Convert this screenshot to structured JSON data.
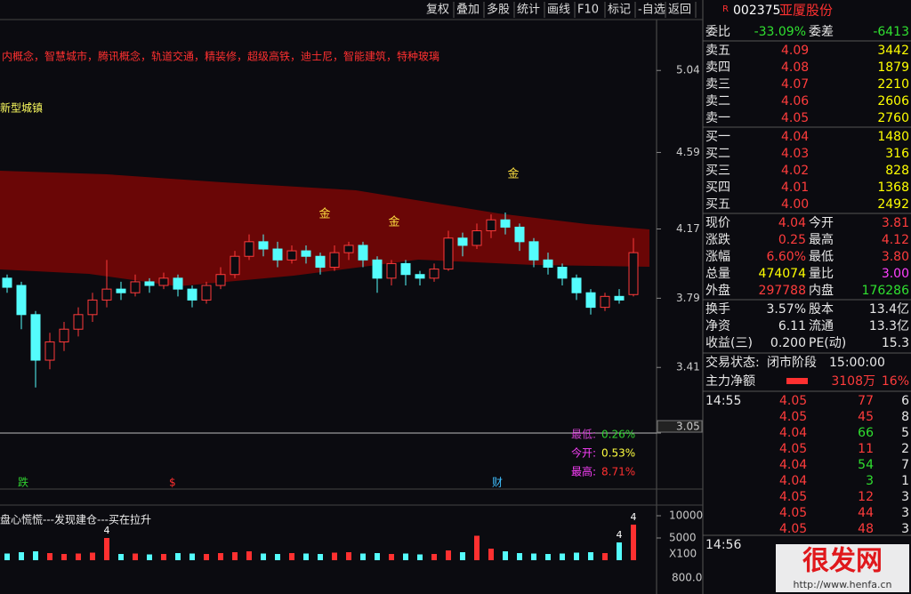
{
  "toolbar": [
    "复权",
    "叠加",
    "多股",
    "统计",
    "画线",
    "F10",
    "标记",
    "-自选",
    "返回"
  ],
  "concepts": "内概念，智慧城市，腾讯概念，轨道交通，精装修，超级高铁，迪士尼，智能建筑，特种玻璃",
  "concept_tag": "新型城镇",
  "price": {
    "ylim": [
      3.05,
      5.29
    ],
    "yticks": [
      5.04,
      4.59,
      4.17,
      3.79,
      3.41,
      3.05
    ],
    "candles": [
      {
        "open": 3.9,
        "close": 3.85,
        "low": 3.82,
        "high": 3.92
      },
      {
        "open": 3.86,
        "close": 3.7,
        "low": 3.62,
        "high": 3.88
      },
      {
        "open": 3.7,
        "close": 3.45,
        "low": 3.3,
        "high": 3.72
      },
      {
        "open": 3.45,
        "close": 3.55,
        "low": 3.4,
        "high": 3.6
      },
      {
        "open": 3.55,
        "close": 3.62,
        "low": 3.5,
        "high": 3.66
      },
      {
        "open": 3.62,
        "close": 3.7,
        "low": 3.58,
        "high": 3.74
      },
      {
        "open": 3.7,
        "close": 3.78,
        "low": 3.66,
        "high": 3.82
      },
      {
        "open": 3.78,
        "close": 3.84,
        "low": 3.74,
        "high": 4.0
      },
      {
        "open": 3.84,
        "close": 3.82,
        "low": 3.78,
        "high": 3.88
      },
      {
        "open": 3.82,
        "close": 3.88,
        "low": 3.8,
        "high": 3.92
      },
      {
        "open": 3.88,
        "close": 3.86,
        "low": 3.82,
        "high": 3.9
      },
      {
        "open": 3.86,
        "close": 3.9,
        "low": 3.84,
        "high": 3.93
      },
      {
        "open": 3.9,
        "close": 3.84,
        "low": 3.8,
        "high": 3.92
      },
      {
        "open": 3.84,
        "close": 3.78,
        "low": 3.74,
        "high": 3.86
      },
      {
        "open": 3.78,
        "close": 3.86,
        "low": 3.76,
        "high": 3.88
      },
      {
        "open": 3.86,
        "close": 3.92,
        "low": 3.84,
        "high": 3.96
      },
      {
        "open": 3.92,
        "close": 4.02,
        "low": 3.9,
        "high": 4.05
      },
      {
        "open": 4.02,
        "close": 4.1,
        "low": 4.0,
        "high": 4.14
      },
      {
        "open": 4.1,
        "close": 4.06,
        "low": 4.02,
        "high": 4.14
      },
      {
        "open": 4.06,
        "close": 4.0,
        "low": 3.96,
        "high": 4.1
      },
      {
        "open": 4.0,
        "close": 4.05,
        "low": 3.98,
        "high": 4.08
      },
      {
        "open": 4.05,
        "close": 4.02,
        "low": 3.98,
        "high": 4.08
      },
      {
        "open": 4.02,
        "close": 3.96,
        "low": 3.92,
        "high": 4.04
      },
      {
        "open": 3.96,
        "close": 4.04,
        "low": 3.94,
        "high": 4.08
      },
      {
        "open": 4.04,
        "close": 4.08,
        "low": 4.0,
        "high": 4.1
      },
      {
        "open": 4.08,
        "close": 4.0,
        "low": 3.96,
        "high": 4.1
      },
      {
        "open": 4.0,
        "close": 3.9,
        "low": 3.82,
        "high": 4.02
      },
      {
        "open": 3.9,
        "close": 3.98,
        "low": 3.86,
        "high": 4.0
      },
      {
        "open": 3.98,
        "close": 3.92,
        "low": 3.86,
        "high": 4.0
      },
      {
        "open": 3.92,
        "close": 3.9,
        "low": 3.86,
        "high": 3.94
      },
      {
        "open": 3.9,
        "close": 3.95,
        "low": 3.88,
        "high": 3.98
      },
      {
        "open": 3.95,
        "close": 4.12,
        "low": 3.94,
        "high": 4.16
      },
      {
        "open": 4.12,
        "close": 4.08,
        "low": 4.02,
        "high": 4.15
      },
      {
        "open": 4.08,
        "close": 4.16,
        "low": 4.06,
        "high": 4.2
      },
      {
        "open": 4.16,
        "close": 4.22,
        "low": 4.12,
        "high": 4.25
      },
      {
        "open": 4.22,
        "close": 4.18,
        "low": 4.14,
        "high": 4.26
      },
      {
        "open": 4.18,
        "close": 4.1,
        "low": 4.05,
        "high": 4.2
      },
      {
        "open": 4.1,
        "close": 4.0,
        "low": 3.96,
        "high": 4.12
      },
      {
        "open": 4.0,
        "close": 3.96,
        "low": 3.92,
        "high": 4.04
      },
      {
        "open": 3.96,
        "close": 3.9,
        "low": 3.86,
        "high": 3.98
      },
      {
        "open": 3.9,
        "close": 3.82,
        "low": 3.78,
        "high": 3.92
      },
      {
        "open": 3.82,
        "close": 3.74,
        "low": 3.7,
        "high": 3.84
      },
      {
        "open": 3.74,
        "close": 3.8,
        "low": 3.72,
        "high": 3.82
      },
      {
        "open": 3.8,
        "close": 3.78,
        "low": 3.76,
        "high": 3.84
      },
      {
        "open": 3.81,
        "close": 4.04,
        "low": 3.8,
        "high": 4.12
      }
    ]
  },
  "markers": [
    "金",
    "金",
    "金"
  ],
  "stats_box": [
    {
      "label": "最低:",
      "value": "0.26%"
    },
    {
      "label": "今开:",
      "value": "0.53%"
    },
    {
      "label": "最高:",
      "value": "8.71%"
    }
  ],
  "signals": [
    "跌",
    "$",
    "财"
  ],
  "volume": {
    "title": "盘心慌慌---发现建仓---买在拉升",
    "ylim": [
      0,
      12400
    ],
    "yticks": [
      10000,
      5000
    ],
    "unit": "X100",
    "values": [
      1500,
      1800,
      2000,
      1600,
      1400,
      1500,
      1700,
      5000,
      1400,
      1500,
      1300,
      1400,
      1600,
      1500,
      1400,
      1600,
      1800,
      2000,
      1500,
      1400,
      1600,
      1500,
      1400,
      1700,
      1800,
      1500,
      1600,
      1400,
      1500,
      1300,
      1400,
      2200,
      1800,
      5500,
      2600,
      2000,
      1600,
      1500,
      1400,
      1500,
      1700,
      1800,
      1600,
      4000,
      8000
    ],
    "signal_labels": [
      null,
      null,
      null,
      null,
      null,
      null,
      null,
      "4",
      null,
      null,
      null,
      null,
      null,
      null,
      null,
      null,
      null,
      null,
      null,
      null,
      null,
      null,
      null,
      null,
      null,
      null,
      null,
      null,
      null,
      null,
      null,
      null,
      null,
      null,
      null,
      null,
      null,
      null,
      null,
      null,
      null,
      null,
      null,
      "4",
      "4"
    ]
  },
  "lower_axis": "800.0",
  "quote": {
    "flag": "R",
    "code": "002375",
    "name": "亚厦股份",
    "ratio": [
      "委比",
      "-33.09%",
      "委差",
      "-6413"
    ],
    "sell": [
      [
        "卖五",
        "4.09",
        "3442"
      ],
      [
        "卖四",
        "4.08",
        "1879"
      ],
      [
        "卖三",
        "4.07",
        "2210"
      ],
      [
        "卖二",
        "4.06",
        "2606"
      ],
      [
        "卖一",
        "4.05",
        "2760"
      ]
    ],
    "buy": [
      [
        "买一",
        "4.04",
        "1480"
      ],
      [
        "买二",
        "4.03",
        "316"
      ],
      [
        "买三",
        "4.02",
        "828"
      ],
      [
        "买四",
        "4.01",
        "1368"
      ],
      [
        "买五",
        "4.00",
        "2492"
      ]
    ],
    "stats": [
      [
        "现价",
        "4.04",
        "今开",
        "3.81"
      ],
      [
        "涨跌",
        "0.25",
        "最高",
        "4.12"
      ],
      [
        "涨幅",
        "6.60%",
        "最低",
        "3.80"
      ],
      [
        "总量",
        "474074",
        "量比",
        "3.00"
      ],
      [
        "外盘",
        "297788",
        "内盘",
        "176286"
      ]
    ],
    "stats2": [
      [
        "换手",
        "3.57%",
        "股本",
        "13.4亿"
      ],
      [
        "净资",
        "6.11",
        "流通",
        "13.3亿"
      ],
      [
        "收益(三)",
        "0.200",
        "PE(动)",
        "15.3"
      ]
    ],
    "status": [
      "交易状态:",
      "闭市阶段",
      "15:00:00"
    ],
    "flow": [
      "主力净额",
      "3108万",
      "16%"
    ],
    "ticks": {
      "time": "14:55",
      "rows": [
        [
          "4.05",
          "77",
          "6"
        ],
        [
          "4.05",
          "45",
          "8"
        ],
        [
          "4.04",
          "66",
          "5"
        ],
        [
          "4.05",
          "11",
          "2"
        ],
        [
          "4.04",
          "54",
          "7"
        ],
        [
          "4.04",
          "3",
          "1"
        ],
        [
          "4.05",
          "12",
          "3"
        ],
        [
          "4.05",
          "44",
          "3"
        ],
        [
          "4.05",
          "48",
          "3"
        ]
      ],
      "next_time": "14:56"
    }
  },
  "watermark": {
    "title": "很发网",
    "url": "http://www.henfa.cn"
  }
}
